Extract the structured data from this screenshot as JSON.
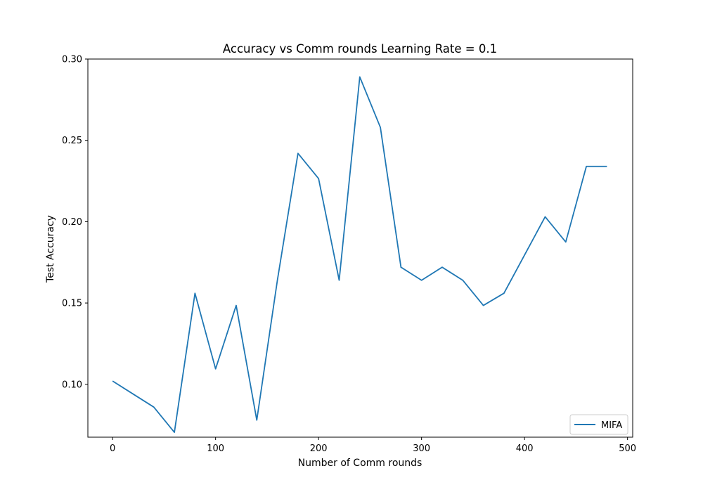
{
  "chart_data": {
    "type": "line",
    "title": "Accuracy vs Comm rounds Learning Rate = 0.1",
    "xlabel": "Number of Comm rounds",
    "ylabel": "Test Accuracy",
    "xlim": [
      -24,
      505
    ],
    "ylim": [
      0.0675,
      0.3
    ],
    "xticks": [
      0,
      100,
      200,
      300,
      400,
      500
    ],
    "yticks": [
      0.1,
      0.15,
      0.2,
      0.25,
      0.3
    ],
    "xtick_labels": [
      "0",
      "100",
      "200",
      "300",
      "400",
      "500"
    ],
    "ytick_labels": [
      "0.10",
      "0.15",
      "0.20",
      "0.25",
      "0.30"
    ],
    "grid": false,
    "legend_position": "lower right",
    "series": [
      {
        "name": "MIFA",
        "color": "#1f77b4",
        "x": [
          0,
          20,
          40,
          60,
          80,
          100,
          120,
          140,
          160,
          180,
          200,
          220,
          240,
          260,
          280,
          300,
          320,
          340,
          360,
          380,
          400,
          420,
          440,
          460,
          480
        ],
        "y": [
          0.102,
          0.094,
          0.086,
          0.0705,
          0.156,
          0.1095,
          0.1485,
          0.078,
          0.164,
          0.242,
          0.2265,
          0.164,
          0.289,
          0.258,
          0.172,
          0.164,
          0.172,
          0.164,
          0.1485,
          0.156,
          0.1795,
          0.203,
          0.1875,
          0.234,
          0.234
        ]
      }
    ]
  }
}
